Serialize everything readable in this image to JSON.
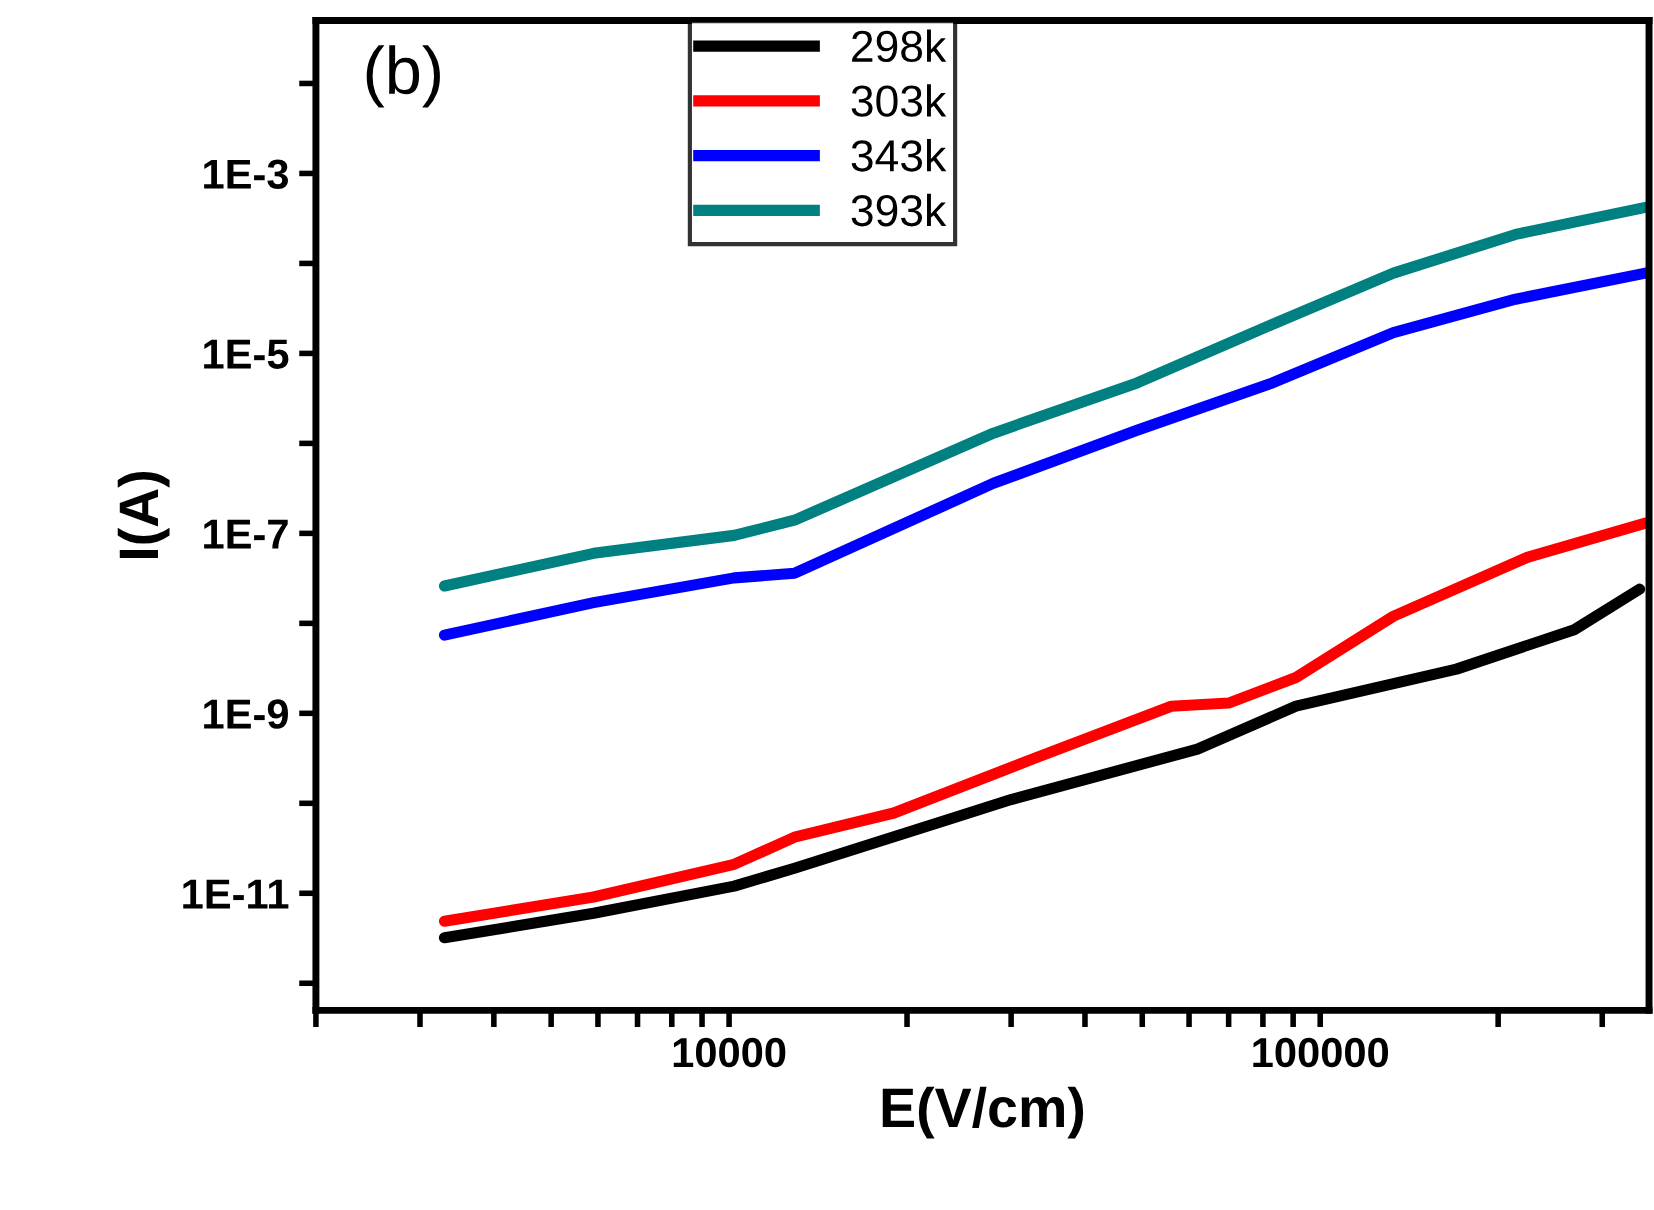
{
  "chart_data": {
    "type": "line",
    "xlabel": "E(V/cm)",
    "ylabel": "I(A)",
    "annotations": [
      "(b)"
    ],
    "log": "xy",
    "grid": false,
    "legend": "top",
    "marker": "none",
    "line_style": "solid",
    "xlim": [
      2000,
      360000
    ],
    "ylim": [
      5e-13,
      0.05
    ],
    "xticks": [
      {
        "value": 2000,
        "label": null
      },
      {
        "value": 3000,
        "label": null
      },
      {
        "value": 4000,
        "label": null
      },
      {
        "value": 5000,
        "label": null
      },
      {
        "value": 6000,
        "label": null
      },
      {
        "value": 7000,
        "label": null
      },
      {
        "value": 8000,
        "label": null
      },
      {
        "value": 9000,
        "label": null
      },
      10000,
      {
        "value": 20000,
        "label": null
      },
      {
        "value": 30000,
        "label": null
      },
      {
        "value": 40000,
        "label": null
      },
      {
        "value": 50000,
        "label": null
      },
      {
        "value": 60000,
        "label": null
      },
      {
        "value": 70000,
        "label": null
      },
      {
        "value": 80000,
        "label": null
      },
      {
        "value": 90000,
        "label": null
      },
      100000,
      {
        "value": 200000,
        "label": null
      },
      {
        "value": 300000,
        "label": null
      }
    ],
    "yticks": [
      {
        "value": 1e-12,
        "label": null
      },
      {
        "value": 1e-11,
        "label": "1E-11"
      },
      {
        "value": 1e-10,
        "label": null
      },
      {
        "value": 1e-09,
        "label": "1E-9"
      },
      {
        "value": 1e-08,
        "label": null
      },
      {
        "value": 1e-07,
        "label": "1E-7"
      },
      {
        "value": 1e-06,
        "label": null
      },
      {
        "value": 1e-05,
        "label": "1E-5"
      },
      {
        "value": 0.0001,
        "label": null
      },
      {
        "value": 0.001,
        "label": "1E-3"
      },
      {
        "value": 0.01,
        "label": null
      }
    ],
    "series": [
      {
        "name": "298k",
        "color": "#000000",
        "x": [
          3300,
          5900,
          10200,
          12900,
          24000,
          30000,
          62000,
          91000,
          170000,
          269000,
          347000
        ],
        "values": [
          3.2e-12,
          6e-12,
          1.2e-11,
          1.9e-11,
          6.9e-11,
          1.1e-10,
          4e-10,
          1.2e-09,
          3.1e-09,
          8.5e-09,
          2.4e-08
        ]
      },
      {
        "name": "303k",
        "color": "#ff0000",
        "x": [
          3300,
          5900,
          10200,
          12900,
          19000,
          33000,
          56000,
          70000,
          91000,
          133000,
          224000,
          355000
        ],
        "values": [
          4.9e-12,
          9.1e-12,
          2.1e-11,
          4.2e-11,
          7.8e-11,
          3.2e-10,
          1.2e-09,
          1.3e-09,
          2.5e-09,
          1.2e-08,
          5.4e-08,
          1.3e-07
        ]
      },
      {
        "name": "343k",
        "color": "#0000ff",
        "x": [
          3300,
          5900,
          10200,
          12900,
          28000,
          49000,
          83000,
          133000,
          214000,
          355000
        ],
        "values": [
          7.4e-09,
          1.7e-08,
          3.2e-08,
          3.6e-08,
          3.6e-07,
          1.4e-06,
          4.7e-06,
          1.7e-05,
          4e-05,
          7.8e-05
        ]
      },
      {
        "name": "393k",
        "color": "#008080",
        "x": [
          3300,
          5900,
          10200,
          12900,
          28000,
          49000,
          83000,
          133000,
          214000,
          355000
        ],
        "values": [
          2.6e-08,
          6e-08,
          9.5e-08,
          1.4e-07,
          1.3e-06,
          4.7e-06,
          2.1e-05,
          7.8e-05,
          0.00021,
          0.00042
        ]
      }
    ]
  }
}
